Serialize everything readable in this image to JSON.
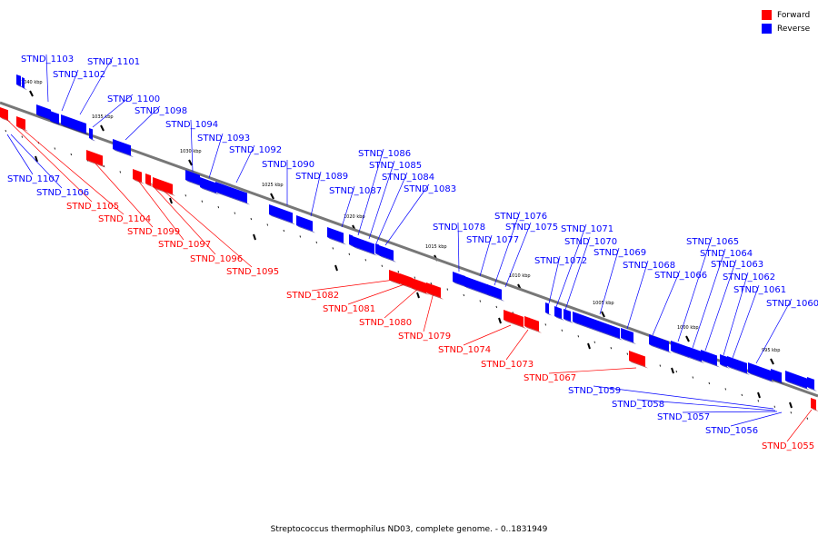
{
  "legend": {
    "forward_label": "Forward",
    "reverse_label": "Reverse",
    "forward_color": "#ff0000",
    "reverse_color": "#0000ff"
  },
  "caption": "Streptococcus thermophilus ND03, complete genome. - 0..1831949",
  "scale_labels": [
    "1040 kbp",
    "1035 kbp",
    "1030 kbp",
    "1025 kbp",
    "1020 kbp",
    "1015 kbp",
    "1010 kbp",
    "1005 kbp",
    "1000 kbp",
    "995 kbp"
  ],
  "reverse_genes": [
    "STND_1107",
    "STND_1106",
    "STND_1103",
    "STND_1102",
    "STND_1101",
    "STND_1100",
    "STND_1098",
    "STND_1094",
    "STND_1093",
    "STND_1092",
    "STND_1090",
    "STND_1089",
    "STND_1087",
    "STND_1086",
    "STND_1085",
    "STND_1084",
    "STND_1083",
    "STND_1078",
    "STND_1077",
    "STND_1076",
    "STND_1075",
    "STND_1072",
    "STND_1071",
    "STND_1070",
    "STND_1069",
    "STND_1068",
    "STND_1066",
    "STND_1065",
    "STND_1064",
    "STND_1063",
    "STND_1062",
    "STND_1061",
    "STND_1060",
    "STND_1059",
    "STND_1058",
    "STND_1057",
    "STND_1056"
  ],
  "forward_genes": [
    "STND_1105",
    "STND_1104",
    "STND_1099",
    "STND_1097",
    "STND_1096",
    "STND_1095",
    "STND_1082",
    "STND_1081",
    "STND_1080",
    "STND_1079",
    "STND_1074",
    "STND_1073",
    "STND_1067",
    "STND_1055"
  ]
}
